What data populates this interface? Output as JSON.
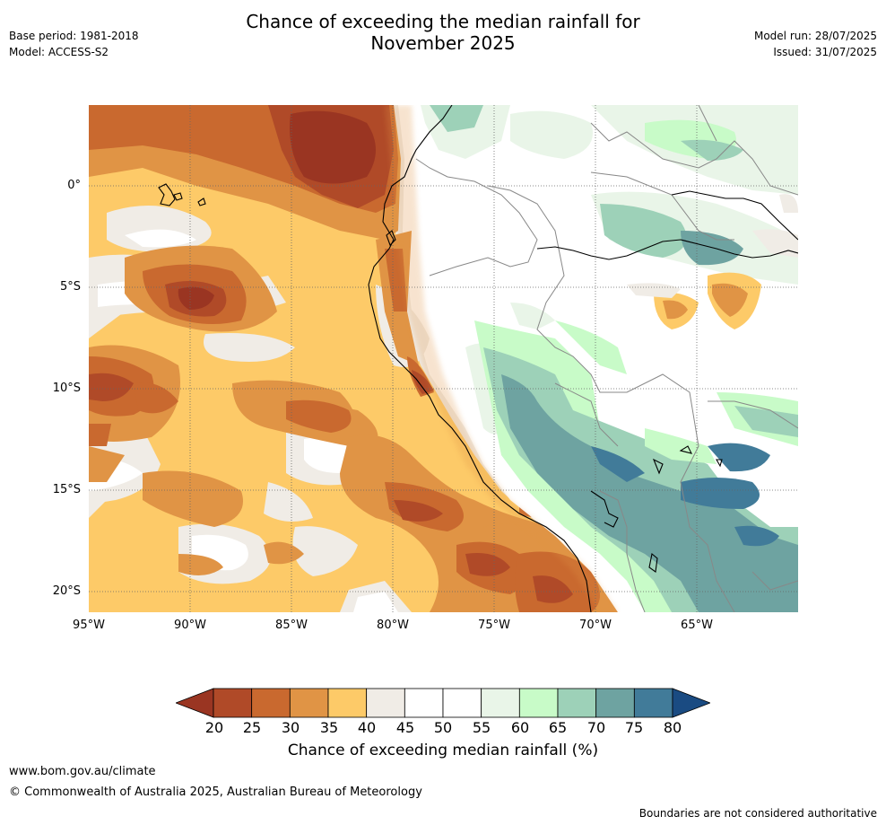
{
  "title": "Chance of exceeding the median rainfall for November 2025",
  "title_lines": [
    "Chance of exceeding the median rainfall for",
    "November 2025"
  ],
  "left_meta": [
    "Base period: 1981-2018",
    "Model: ACCESS-S2"
  ],
  "right_meta": [
    "Model run: 28/07/2025",
    "Issued: 31/07/2025"
  ],
  "latitude_labels": [
    "0°",
    "5°S",
    "10°S",
    "15°S",
    "20°S"
  ],
  "longitude_labels": [
    "95°W",
    "90°W",
    "85°W",
    "80°W",
    "75°W",
    "70°W",
    "65°W"
  ],
  "colorbar": {
    "ticks": [
      "20",
      "25",
      "30",
      "35",
      "40",
      "45",
      "50",
      "55",
      "60",
      "65",
      "70",
      "75",
      "80"
    ],
    "colors": [
      "#9a3522",
      "#b04a28",
      "#c9692f",
      "#e09445",
      "#fdca68",
      "#f0ece6",
      "#ffffff",
      "#ffffff",
      "#e9f5e8",
      "#c8fbc8",
      "#9dd1b8",
      "#6ea3a1",
      "#417b99",
      "#1a4b82"
    ],
    "label": "Chance of exceeding median rainfall (%)"
  },
  "footer": {
    "website": "www.bom.gov.au/climate",
    "copyright": "© Commonwealth of Australia 2025, Australian Bureau of Meteorology",
    "disclaimer": "Boundaries are not considered authoritative"
  }
}
